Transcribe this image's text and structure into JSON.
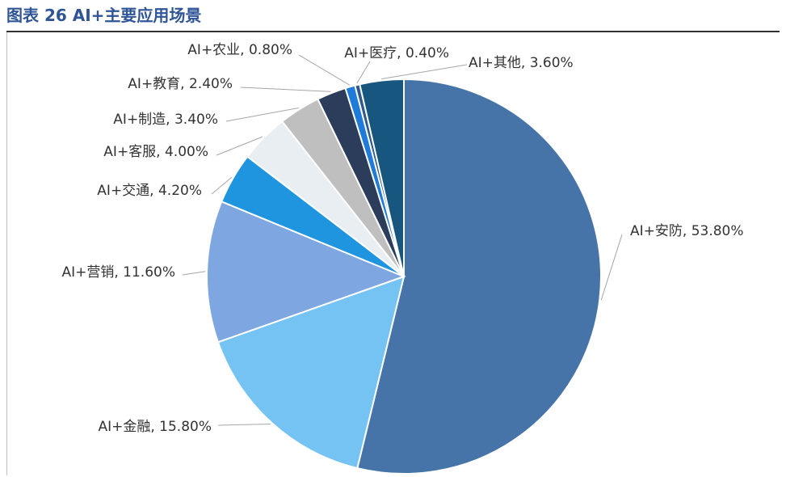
{
  "figure": {
    "title": "图表 26 AI+主要应用场景"
  },
  "chart_data": {
    "type": "pie",
    "title": "",
    "slices": [
      {
        "name": "AI+安防",
        "value": 53.8,
        "label": "AI+安防, 53.80%",
        "color": "#4674a8"
      },
      {
        "name": "AI+金融",
        "value": 15.8,
        "label": "AI+金融, 15.80%",
        "color": "#74c3f3"
      },
      {
        "name": "AI+营销",
        "value": 11.6,
        "label": "AI+营销, 11.60%",
        "color": "#7ea6e0"
      },
      {
        "name": "AI+交通",
        "value": 4.2,
        "label": "AI+交通, 4.20%",
        "color": "#1f95e0"
      },
      {
        "name": "AI+客服",
        "value": 4.0,
        "label": "AI+客服, 4.00%",
        "color": "#e8eef1"
      },
      {
        "name": "AI+制造",
        "value": 3.4,
        "label": "AI+制造, 3.40%",
        "color": "#bfbfbf"
      },
      {
        "name": "AI+教育",
        "value": 2.4,
        "label": "AI+教育, 2.40%",
        "color": "#2b3d5b"
      },
      {
        "name": "AI+农业",
        "value": 0.8,
        "label": "AI+农业, 0.80%",
        "color": "#1f7ad8"
      },
      {
        "name": "AI+医疗",
        "value": 0.4,
        "label": "AI+医疗, 0.40%",
        "color": "#2f5a8a"
      },
      {
        "name": "AI+其他",
        "value": 3.6,
        "label": "AI+其他, 3.60%",
        "color": "#17577f"
      }
    ]
  }
}
